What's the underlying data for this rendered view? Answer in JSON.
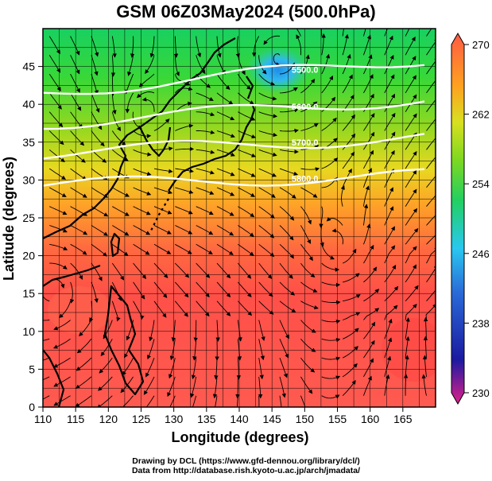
{
  "title": "GSM 06Z03May2024 (500.0hPa)",
  "map": {
    "x_label": "Longitude (degrees)",
    "y_label": "Latitude  (degrees)",
    "x_range": [
      110,
      170
    ],
    "y_range": [
      0,
      50
    ],
    "x_ticks": [
      "110",
      "115",
      "120",
      "125",
      "130",
      "135",
      "140",
      "145",
      "150",
      "155",
      "160",
      "165"
    ],
    "y_ticks": [
      "0",
      "5",
      "10",
      "15",
      "20",
      "25",
      "30",
      "35",
      "40",
      "45"
    ],
    "fill_variable": "temperature (K)",
    "overlay": "wind streamlines, geopotential height contours, coastlines"
  },
  "colorbar": {
    "range": [
      230,
      270
    ],
    "tick_labels": [
      "270",
      "262",
      "254",
      "246",
      "238",
      "230"
    ],
    "colors": [
      "#e0208a",
      "#1a1aa0",
      "#2a6ad8",
      "#29c8f0",
      "#22d060",
      "#7ed820",
      "#d8e020",
      "#ffa020",
      "#ff5a45"
    ]
  },
  "contours": [
    {
      "label": "5500.0",
      "lat_at_150": 44.6
    },
    {
      "label": "5600.0",
      "lat_at_150": 39.7
    },
    {
      "label": "5700.0",
      "lat_at_150": 35.0
    },
    {
      "label": "5800.0",
      "lat_at_150": 30.2
    }
  ],
  "footer": {
    "line1": "Drawing by DCL (https://www.gfd-dennou.org/library/dcl/)",
    "line2": "Data from http://database.rish.kyoto-u.ac.jp/arch/jmadata/"
  }
}
